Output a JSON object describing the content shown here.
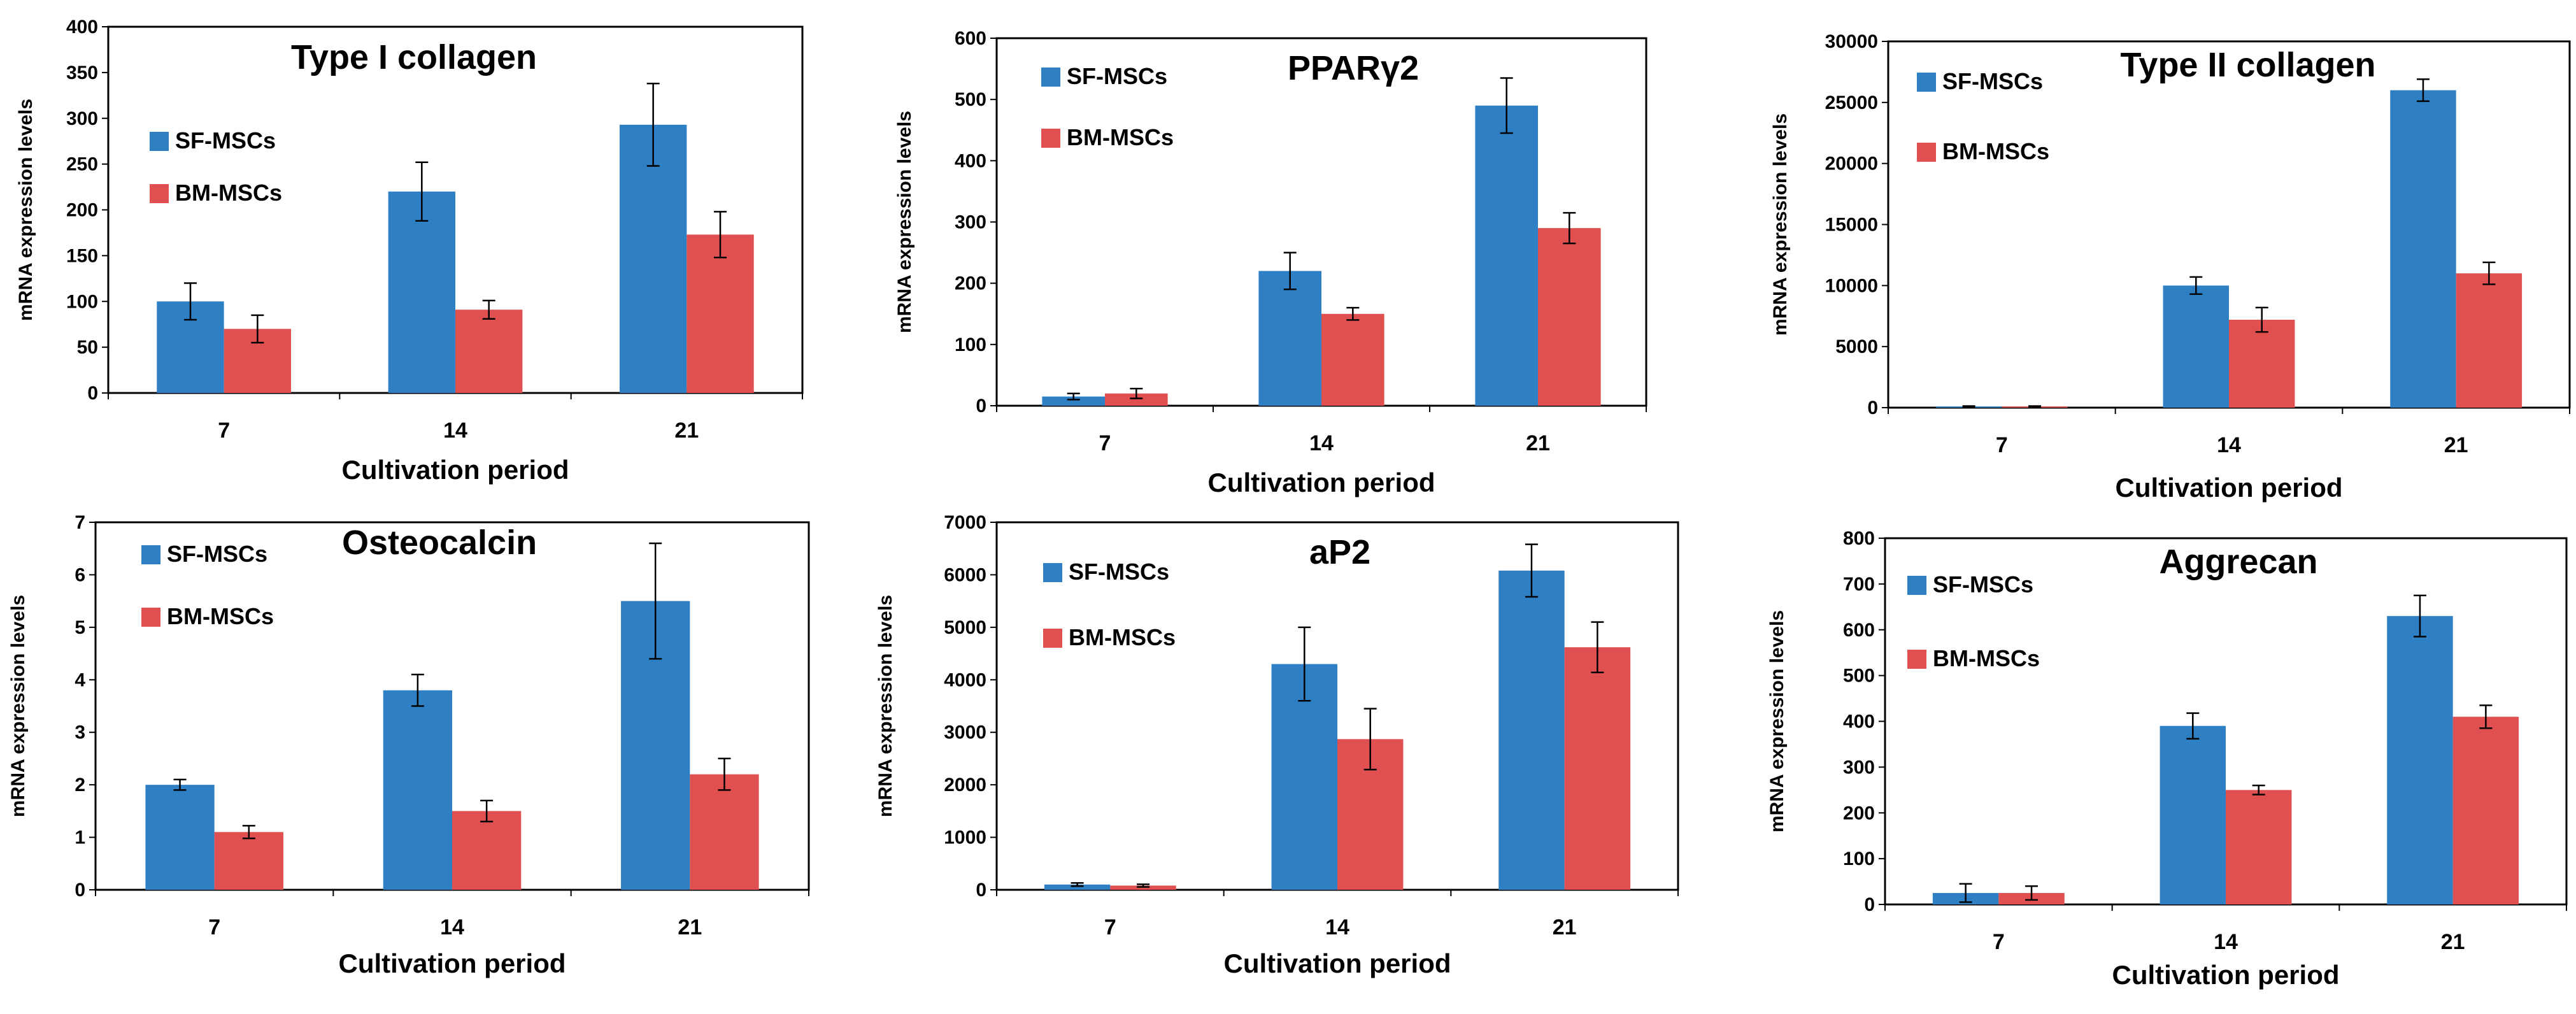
{
  "colors": {
    "sf": "#2E7FC3",
    "bm": "#E05050",
    "axis": "#000000"
  },
  "chart_data": [
    {
      "type": "bar",
      "title": "Type I collagen",
      "xlabel": "Cultivation period",
      "ylabel": "mRNA expression levels",
      "categories": [
        "7",
        "14",
        "21"
      ],
      "ylim": [
        0,
        400
      ],
      "ytick_step": 50,
      "ytick_labels": [
        "0",
        "50",
        "100",
        "150",
        "200",
        "250",
        "300",
        "350",
        "400"
      ],
      "legend": [
        "SF-MSCs",
        "BM-MSCs"
      ],
      "series": [
        {
          "name": "SF-MSCs",
          "values": [
            100,
            220,
            293
          ],
          "errors": [
            20,
            32,
            45
          ]
        },
        {
          "name": "BM-MSCs",
          "values": [
            70,
            91,
            173
          ],
          "errors": [
            15,
            10,
            25
          ]
        }
      ]
    },
    {
      "type": "bar",
      "title": "PPARγ2",
      "xlabel": "Cultivation period",
      "ylabel": "mRNA expression levels",
      "categories": [
        "7",
        "14",
        "21"
      ],
      "ylim": [
        0,
        600
      ],
      "ytick_step": 100,
      "ytick_labels": [
        "0",
        "100",
        "200",
        "300",
        "400",
        "500",
        "600"
      ],
      "legend": [
        "SF-MSCs",
        "BM-MSCs"
      ],
      "series": [
        {
          "name": "SF-MSCs",
          "values": [
            15,
            220,
            490
          ],
          "errors": [
            5,
            30,
            45
          ]
        },
        {
          "name": "BM-MSCs",
          "values": [
            20,
            150,
            290
          ],
          "errors": [
            8,
            10,
            25
          ]
        }
      ]
    },
    {
      "type": "bar",
      "title": "Type II collagen",
      "xlabel": "Cultivation period",
      "ylabel": "mRNA expression levels",
      "categories": [
        "7",
        "14",
        "21"
      ],
      "ylim": [
        0,
        30000
      ],
      "ytick_step": 5000,
      "ytick_labels": [
        "0",
        "5000",
        "10000",
        "15000",
        "20000",
        "25000",
        "30000"
      ],
      "legend": [
        "SF-MSCs",
        "BM-MSCs"
      ],
      "series": [
        {
          "name": "SF-MSCs",
          "values": [
            100,
            10000,
            26000
          ],
          "errors": [
            30,
            700,
            900
          ]
        },
        {
          "name": "BM-MSCs",
          "values": [
            100,
            7200,
            11000
          ],
          "errors": [
            30,
            1000,
            900
          ]
        }
      ]
    },
    {
      "type": "bar",
      "title": "Osteocalcin",
      "xlabel": "Cultivation period",
      "ylabel": "mRNA expression levels",
      "categories": [
        "7",
        "14",
        "21"
      ],
      "ylim": [
        0,
        7
      ],
      "ytick_step": 1,
      "ytick_labels": [
        "0",
        "1",
        "2",
        "3",
        "4",
        "5",
        "6",
        "7"
      ],
      "legend": [
        "SF-MSCs",
        "BM-MSCs"
      ],
      "series": [
        {
          "name": "SF-MSCs",
          "values": [
            2.0,
            3.8,
            5.5
          ],
          "errors": [
            0.1,
            0.3,
            1.1
          ]
        },
        {
          "name": "BM-MSCs",
          "values": [
            1.1,
            1.5,
            2.2
          ],
          "errors": [
            0.12,
            0.2,
            0.3
          ]
        }
      ]
    },
    {
      "type": "bar",
      "title": "aP2",
      "xlabel": "Cultivation period",
      "ylabel": "mRNA expression levels",
      "categories": [
        "7",
        "14",
        "21"
      ],
      "ylim": [
        0,
        7000
      ],
      "ytick_step": 1000,
      "ytick_labels": [
        "0",
        "1000",
        "2000",
        "3000",
        "4000",
        "5000",
        "6000",
        "7000"
      ],
      "legend": [
        "SF-MSCs",
        "BM-MSCs"
      ],
      "series": [
        {
          "name": "SF-MSCs",
          "values": [
            100,
            4300,
            6080
          ],
          "errors": [
            30,
            700,
            500
          ]
        },
        {
          "name": "BM-MSCs",
          "values": [
            80,
            2870,
            4620
          ],
          "errors": [
            25,
            580,
            480
          ]
        }
      ]
    },
    {
      "type": "bar",
      "title": "Aggrecan",
      "xlabel": "Cultivation period",
      "ylabel": "mRNA expression levels",
      "categories": [
        "7",
        "14",
        "21"
      ],
      "ylim": [
        0,
        800
      ],
      "ytick_step": 100,
      "ytick_labels": [
        "0",
        "100",
        "200",
        "300",
        "400",
        "500",
        "600",
        "700",
        "800"
      ],
      "legend": [
        "SF-MSCs",
        "BM-MSCs"
      ],
      "series": [
        {
          "name": "SF-MSCs",
          "values": [
            25,
            390,
            630
          ],
          "errors": [
            20,
            28,
            45
          ]
        },
        {
          "name": "BM-MSCs",
          "values": [
            25,
            250,
            410
          ],
          "errors": [
            15,
            10,
            25
          ]
        }
      ]
    }
  ]
}
